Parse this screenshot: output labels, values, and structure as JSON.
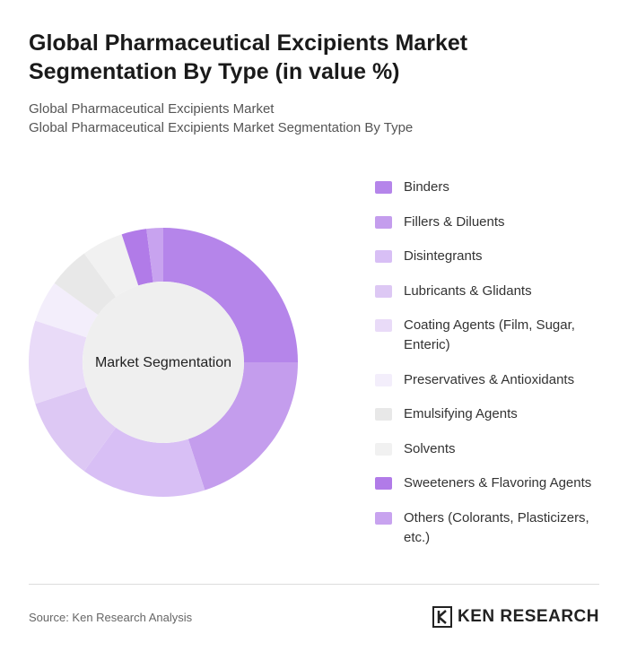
{
  "chart_data": {
    "type": "donut",
    "title": "Global Pharmaceutical Excipients Market Segmentation By Type (in value %)",
    "subtitle": "Global Pharmaceutical Excipients Market",
    "subtitle_2": "Global Pharmaceutical Excipients Market Segmentation By Type",
    "center_label": "Market Segmentation",
    "categories": [
      "Binders",
      "Fillers & Diluents",
      "Disintegrants",
      "Lubricants & Glidants",
      "Coating Agents (Film, Sugar, Enteric)",
      "Preservatives & Antioxidants",
      "Emulsifying Agents",
      "Solvents",
      "Sweeteners & Flavoring Agents",
      "Others (Colorants, Plasticizers, etc.)"
    ],
    "values": [
      25,
      20,
      15,
      10,
      10,
      5,
      5,
      5,
      3,
      2
    ],
    "colors": [
      "#b585ea",
      "#c49ded",
      "#d8bff5",
      "#ddc8f4",
      "#e9dbf8",
      "#f3eefb",
      "#e8e8e8",
      "#f1f1f1",
      "#b17be8",
      "#c8a3ef"
    ]
  },
  "source": "Source: Ken Research Analysis",
  "logo": "KEN RESEARCH"
}
